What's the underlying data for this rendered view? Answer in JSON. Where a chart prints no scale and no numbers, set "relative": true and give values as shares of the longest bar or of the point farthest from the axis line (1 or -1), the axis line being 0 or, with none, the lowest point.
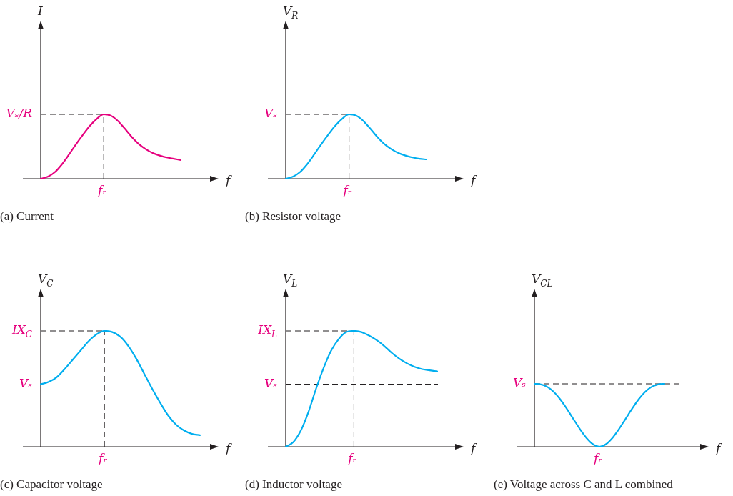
{
  "chart_data": [
    {
      "type": "line",
      "title": "(a) Current",
      "ylabel": "I",
      "xlabel": "f",
      "relative": true,
      "categories": [
        null,
        null,
        null,
        null,
        null,
        null,
        null,
        null,
        null,
        null,
        null,
        null,
        null,
        null,
        null,
        null,
        null,
        null,
        null,
        null,
        null
      ],
      "series": [
        {
          "color": "#e6007e",
          "values": [
            0,
            0.03,
            0.1,
            0.22,
            0.37,
            0.53,
            0.68,
            0.82,
            0.93,
            1.0,
            0.98,
            0.9,
            0.78,
            0.65,
            0.54,
            0.46,
            0.4,
            0.36,
            0.33,
            0.31,
            0.29
          ]
        }
      ],
      "annotations": [
        "fᵣ"
      ],
      "ref_lines": [
        {
          "axis": "y",
          "value": 1,
          "label": "Vₛ/R",
          "line_style": "dashed"
        }
      ]
    },
    {
      "type": "line",
      "title": "(b) Resistor voltage",
      "ylabel": "V$_{R}$",
      "xlabel": "f",
      "relative": true,
      "categories": [
        null,
        null,
        null,
        null,
        null,
        null,
        null,
        null,
        null,
        null,
        null,
        null,
        null,
        null,
        null,
        null,
        null,
        null,
        null,
        null,
        null
      ],
      "series": [
        {
          "color": "#00aeef",
          "values": [
            0,
            0.03,
            0.1,
            0.22,
            0.37,
            0.53,
            0.68,
            0.82,
            0.93,
            1.0,
            0.98,
            0.9,
            0.78,
            0.65,
            0.54,
            0.46,
            0.4,
            0.36,
            0.33,
            0.31,
            0.3
          ]
        }
      ],
      "annotations": [
        "fᵣ"
      ],
      "ref_lines": [
        {
          "axis": "y",
          "value": 1,
          "label": "Vₛ",
          "line_style": "dashed"
        }
      ]
    },
    {
      "type": "line",
      "title": "(c) Capacitor voltage",
      "ylabel": "V$_{C}$",
      "xlabel": "f",
      "relative": true,
      "categories": [
        null,
        null,
        null,
        null,
        null,
        null,
        null,
        null,
        null,
        null,
        null,
        null,
        null,
        null,
        null,
        null,
        null,
        null,
        null,
        null,
        null
      ],
      "series": [
        {
          "color": "#00aeef",
          "values": [
            0.54,
            0.56,
            0.6,
            0.67,
            0.75,
            0.83,
            0.91,
            0.97,
            1.0,
            0.99,
            0.95,
            0.87,
            0.76,
            0.63,
            0.5,
            0.38,
            0.27,
            0.19,
            0.14,
            0.11,
            0.1
          ]
        }
      ],
      "annotations": [
        "Vₛ",
        "fᵣ"
      ],
      "ref_lines": [
        {
          "axis": "y",
          "value": 1,
          "label": "IX$_{C}$",
          "line_style": "dashed"
        }
      ]
    },
    {
      "type": "line",
      "title": "(d) Inductor voltage",
      "ylabel": "V$_{L}$",
      "xlabel": "f",
      "relative": true,
      "categories": [
        null,
        null,
        null,
        null,
        null,
        null,
        null,
        null,
        null,
        null,
        null,
        null,
        null,
        null,
        null,
        null,
        null,
        null,
        null,
        null,
        null
      ],
      "series": [
        {
          "color": "#00aeef",
          "values": [
            0,
            0.04,
            0.14,
            0.3,
            0.5,
            0.68,
            0.83,
            0.93,
            0.99,
            1.0,
            0.99,
            0.96,
            0.92,
            0.87,
            0.81,
            0.76,
            0.72,
            0.69,
            0.67,
            0.66,
            0.65
          ]
        }
      ],
      "annotations": [
        "fᵣ"
      ],
      "ref_lines": [
        {
          "axis": "y",
          "value": 1,
          "label": "IX$_{L}$",
          "line_style": "dashed"
        },
        {
          "axis": "y",
          "value": 0.54,
          "label": "Vₛ",
          "line_style": "dashed"
        }
      ]
    },
    {
      "type": "line",
      "title": "(e) Voltage across C and L combined",
      "ylabel": "V$_{CL}$",
      "xlabel": "f",
      "relative": true,
      "categories": [
        null,
        null,
        null,
        null,
        null,
        null,
        null,
        null,
        null,
        null,
        null,
        null,
        null,
        null,
        null,
        null,
        null,
        null,
        null,
        null,
        null
      ],
      "series": [
        {
          "color": "#00aeef",
          "values": [
            1,
            0.99,
            0.95,
            0.87,
            0.75,
            0.6,
            0.44,
            0.28,
            0.14,
            0.04,
            0,
            0.04,
            0.14,
            0.28,
            0.44,
            0.6,
            0.75,
            0.87,
            0.95,
            0.99,
            1
          ]
        }
      ],
      "annotations": [
        "fᵣ"
      ],
      "ref_lines": [
        {
          "axis": "y",
          "value": 1,
          "label": "Vₛ",
          "line_style": "dashed"
        }
      ]
    }
  ]
}
